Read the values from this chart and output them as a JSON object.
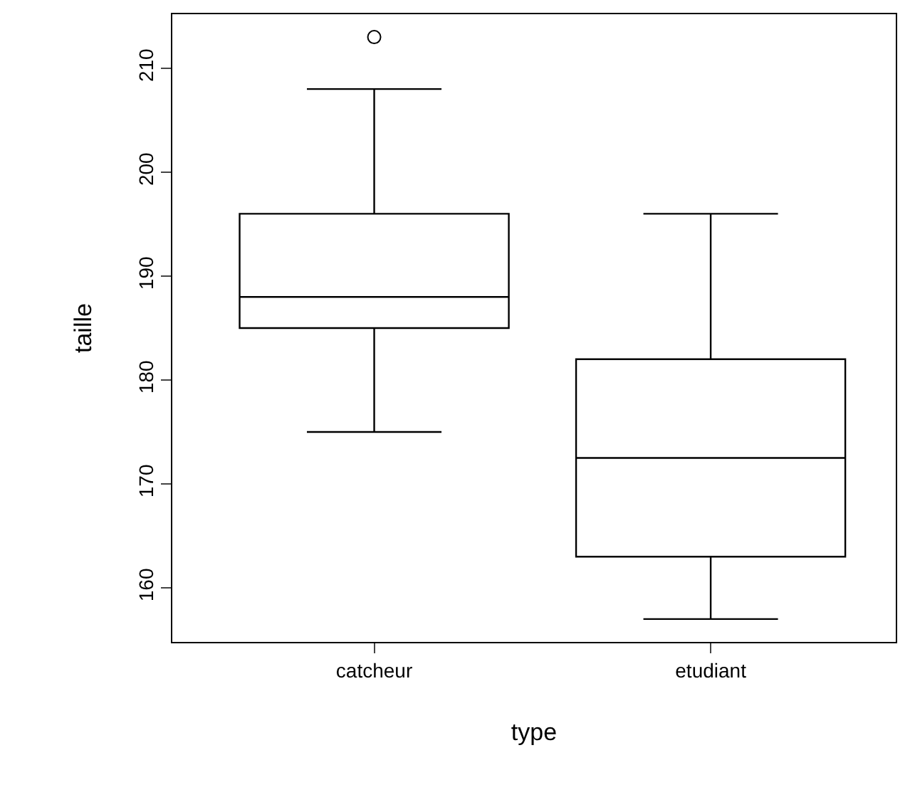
{
  "chart_data": {
    "type": "box",
    "xlabel": "type",
    "ylabel": "taille",
    "categories": [
      "catcheur",
      "etudiant"
    ],
    "boxes": [
      {
        "low": 175,
        "q1": 185,
        "median": 188,
        "q3": 196,
        "high": 208,
        "outliers": [
          213
        ]
      },
      {
        "low": 157,
        "q1": 163,
        "median": 172.5,
        "q3": 182,
        "high": 196
      }
    ],
    "color": "#000000",
    "ylim": [
      154.8,
      215.2
    ],
    "yticks": [
      160,
      170,
      180,
      190,
      200,
      210
    ]
  }
}
